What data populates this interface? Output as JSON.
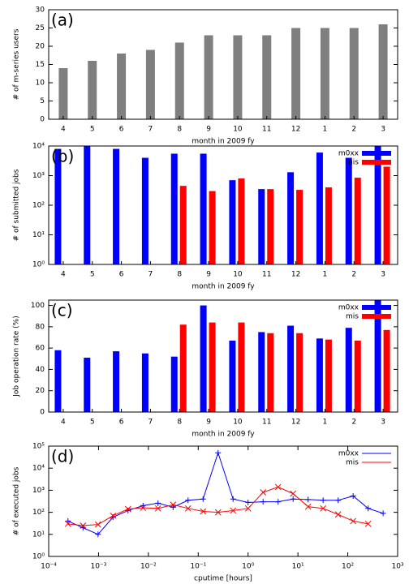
{
  "chart_data": [
    {
      "type": "bar",
      "annotation": "(a)",
      "xlabel": "month in 2009 fy",
      "ylabel": "# of m-series users",
      "categories": [
        "4",
        "5",
        "6",
        "7",
        "8",
        "9",
        "10",
        "11",
        "12",
        "1",
        "2",
        "3"
      ],
      "values": [
        14,
        16,
        18,
        19,
        21,
        23,
        23,
        23,
        25,
        25,
        25,
        26
      ],
      "color": "#7f7f7f",
      "ylim": [
        0,
        30
      ],
      "yticks": [
        0,
        5,
        10,
        15,
        20,
        25,
        30
      ]
    },
    {
      "type": "bar",
      "annotation": "(b)",
      "xlabel": "month in 2009 fy",
      "ylabel": "# of submitted jobs",
      "categories": [
        "4",
        "5",
        "6",
        "7",
        "8",
        "9",
        "10",
        "11",
        "12",
        "1",
        "2",
        "3"
      ],
      "series": [
        {
          "name": "m0xx",
          "color": "#0000ff",
          "values": [
            8000,
            10000,
            8000,
            4000,
            5500,
            5500,
            700,
            350,
            1300,
            6000,
            4000,
            10000
          ]
        },
        {
          "name": "mis",
          "color": "#ff0000",
          "values": [
            null,
            null,
            null,
            null,
            450,
            300,
            800,
            350,
            330,
            400,
            850,
            2000
          ]
        }
      ],
      "ylog": true,
      "ylim": [
        1,
        10000
      ],
      "yticks": [
        {
          "value": 1,
          "label": "10⁰"
        },
        {
          "value": 10,
          "label": "10¹"
        },
        {
          "value": 100,
          "label": "10²"
        },
        {
          "value": 1000,
          "label": "10³"
        },
        {
          "value": 10000,
          "label": "10⁴"
        }
      ],
      "legend": "upper right"
    },
    {
      "type": "bar",
      "annotation": "(c)",
      "xlabel": "month in 2009 fy",
      "ylabel": "Job operation rate (%)",
      "categories": [
        "4",
        "5",
        "6",
        "7",
        "8",
        "9",
        "10",
        "11",
        "12",
        "1",
        "2",
        "3"
      ],
      "series": [
        {
          "name": "m0xx",
          "color": "#0000ff",
          "values": [
            58,
            51,
            57,
            55,
            52,
            100,
            67,
            75,
            81,
            69,
            79,
            105
          ]
        },
        {
          "name": "mis",
          "color": "#ff0000",
          "values": [
            null,
            null,
            null,
            null,
            82,
            84,
            84,
            74,
            74,
            68,
            67,
            77
          ]
        }
      ],
      "ylim": [
        0,
        105
      ],
      "yticks": [
        0,
        20,
        40,
        60,
        80,
        100
      ],
      "legend": "upper right"
    },
    {
      "type": "line",
      "annotation": "(d)",
      "xlabel": "cputime [hours]",
      "ylabel": "# of executed jobs",
      "x": [
        0.000244,
        0.000488,
        0.000977,
        0.00195,
        0.00391,
        0.00781,
        0.0156,
        0.0313,
        0.0625,
        0.125,
        0.25,
        0.5,
        1,
        2,
        4,
        8,
        16,
        32,
        64,
        128,
        256,
        512
      ],
      "series": [
        {
          "name": "m0xx",
          "color": "#0000ff",
          "values": [
            40,
            20,
            10,
            60,
            120,
            200,
            260,
            170,
            350,
            400,
            50000,
            400,
            280,
            300,
            300,
            400,
            380,
            350,
            350,
            550,
            150,
            90
          ]
        },
        {
          "name": "mis",
          "color": "#ff0000",
          "values": [
            30,
            25,
            28,
            70,
            140,
            160,
            150,
            220,
            150,
            110,
            100,
            120,
            150,
            800,
            1400,
            700,
            180,
            150,
            80,
            40,
            30,
            null
          ]
        }
      ],
      "xlog": true,
      "ylog": true,
      "xlim": [
        0.0001,
        1000
      ],
      "ylim": [
        1,
        100000
      ],
      "xticks": [
        {
          "value": 0.0001,
          "label": "10⁻⁴"
        },
        {
          "value": 0.001,
          "label": "10⁻³"
        },
        {
          "value": 0.01,
          "label": "10⁻²"
        },
        {
          "value": 0.1,
          "label": "10⁻¹"
        },
        {
          "value": 1,
          "label": "10⁰"
        },
        {
          "value": 10,
          "label": "10¹"
        },
        {
          "value": 100,
          "label": "10²"
        },
        {
          "value": 1000,
          "label": "10³"
        }
      ],
      "yticks": [
        {
          "value": 1,
          "label": "10⁰"
        },
        {
          "value": 10,
          "label": "10¹"
        },
        {
          "value": 100,
          "label": "10²"
        },
        {
          "value": 1000,
          "label": "10³"
        },
        {
          "value": 10000,
          "label": "10⁴"
        },
        {
          "value": 100000,
          "label": "10⁵"
        }
      ],
      "legend": "upper right"
    }
  ]
}
